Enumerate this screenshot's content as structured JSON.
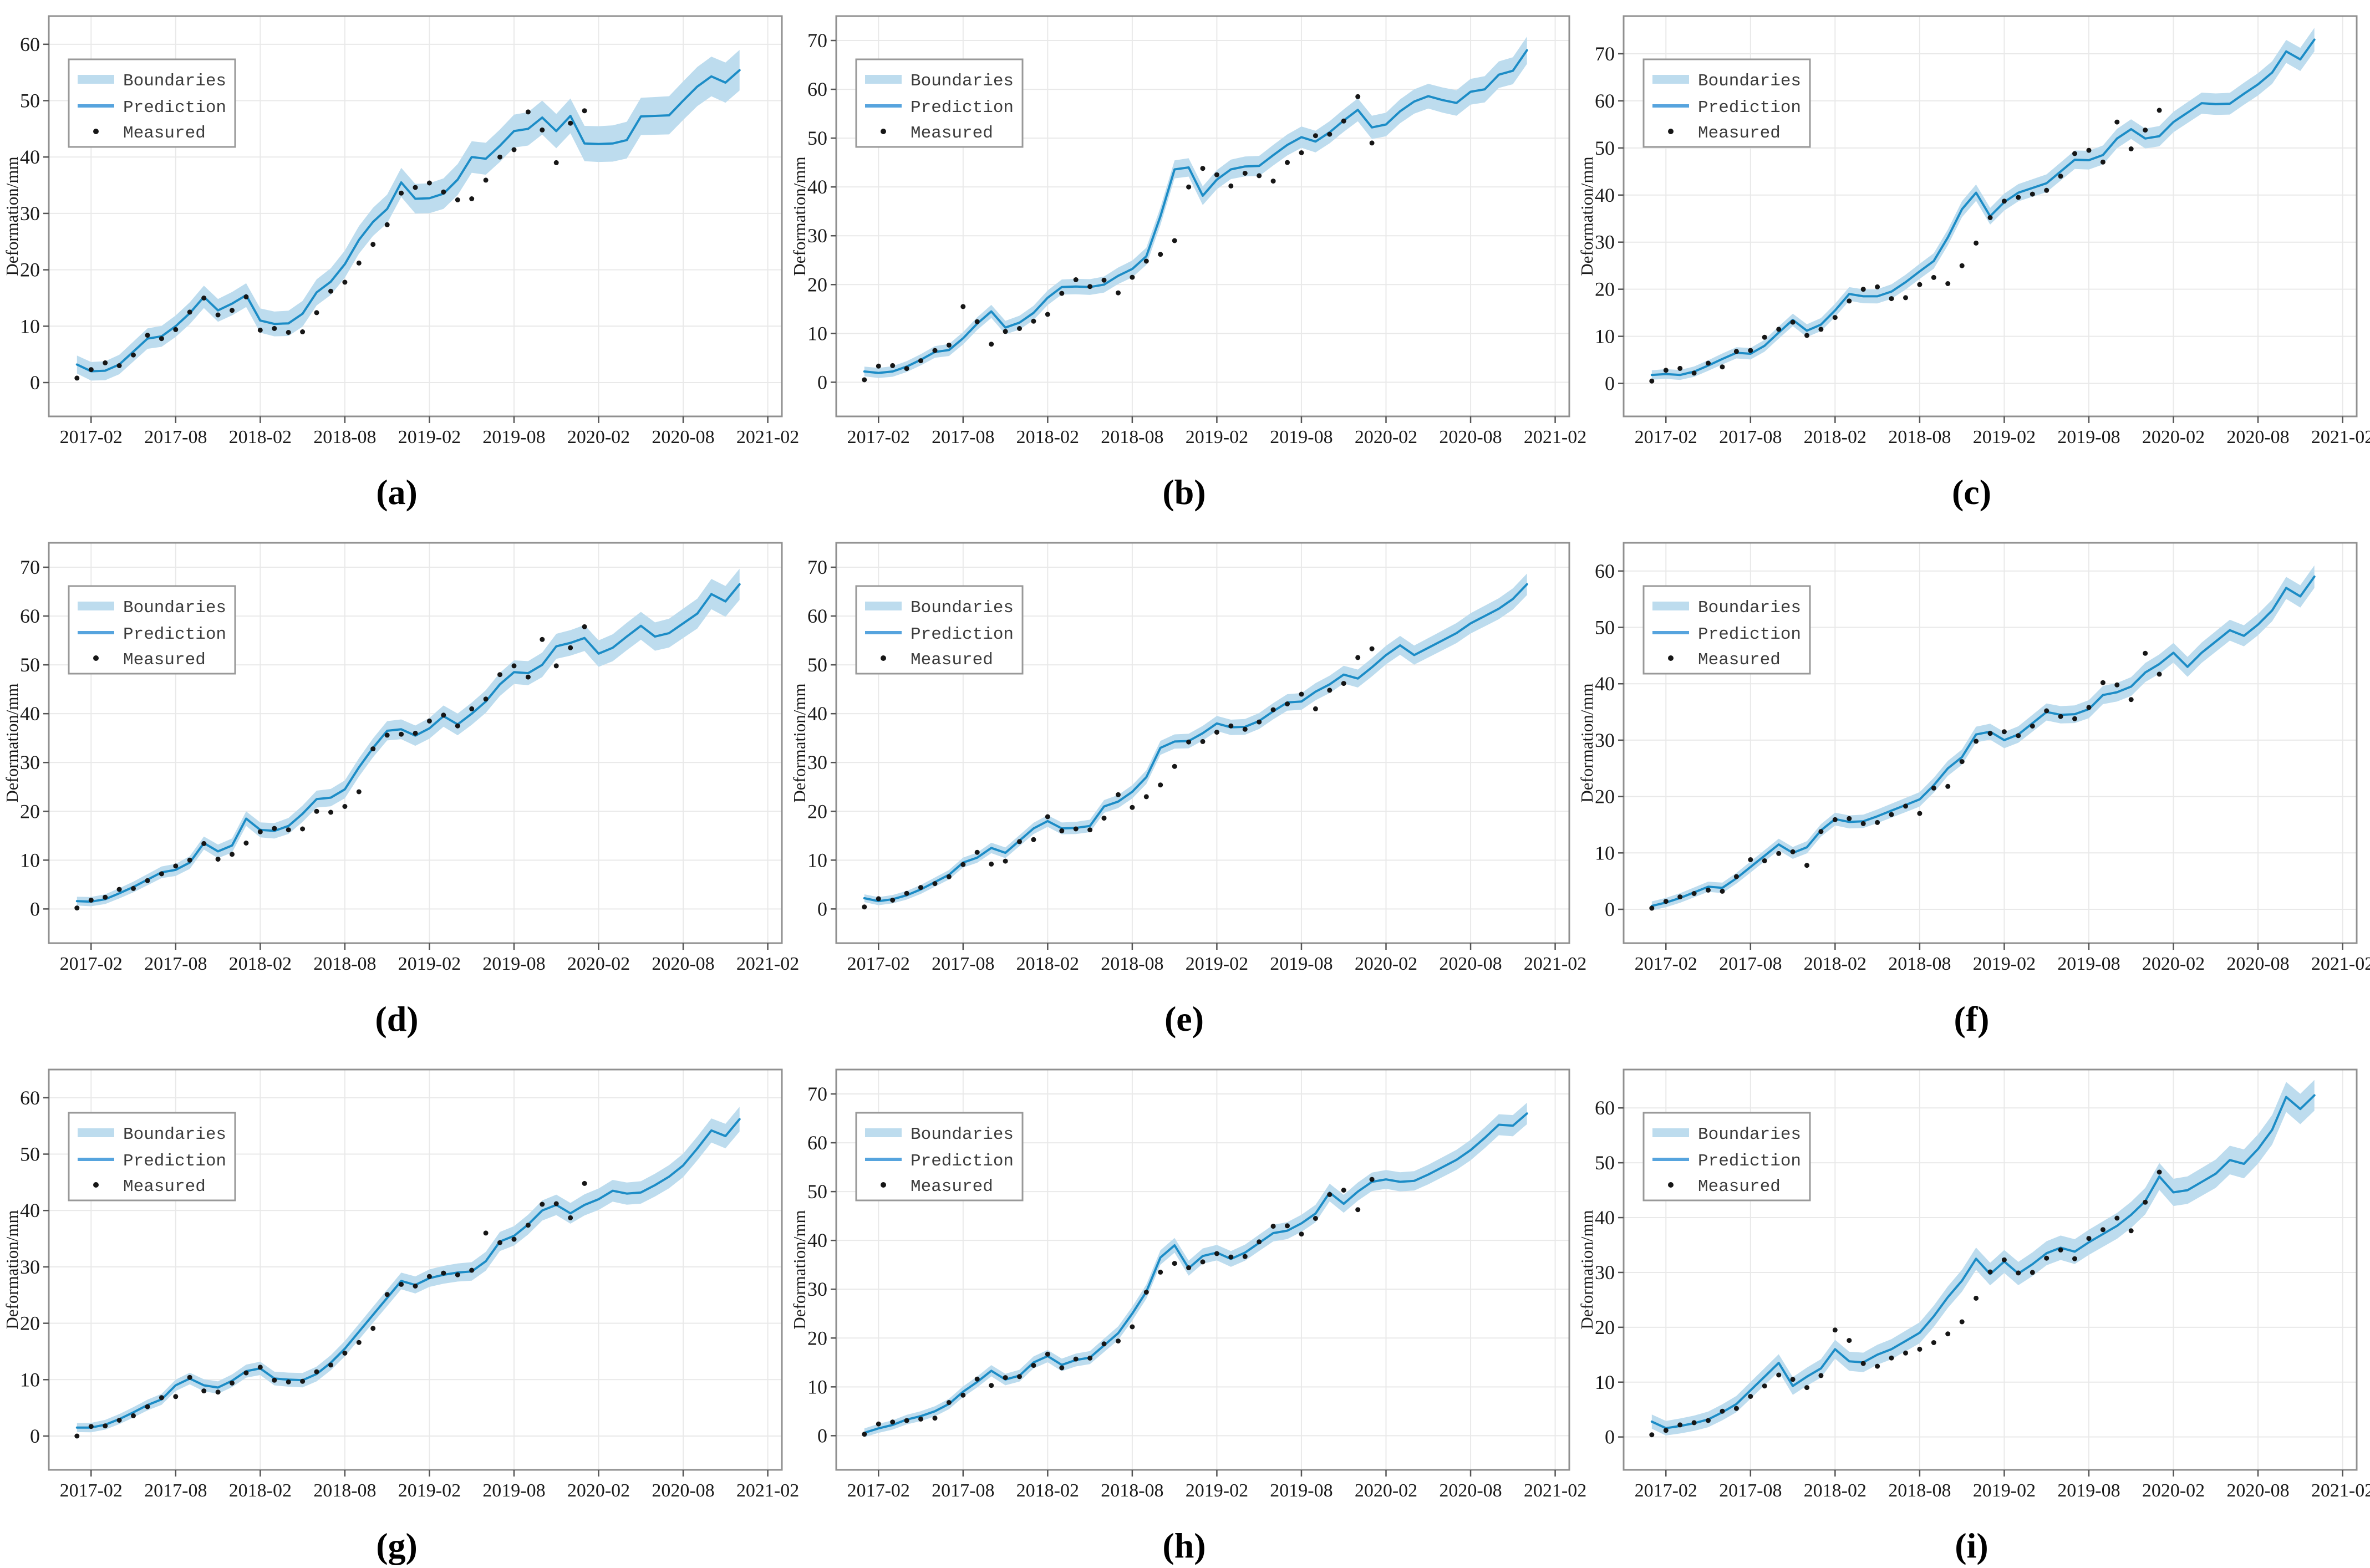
{
  "figure": {
    "ylabel": "Deformation/mm",
    "x_tick_labels": [
      "2017-02",
      "2017-08",
      "2018-02",
      "2018-08",
      "2019-02",
      "2019-08",
      "2020-02",
      "2020-08",
      "2021-02"
    ],
    "x_tick_months": [
      1,
      7,
      13,
      19,
      25,
      31,
      37,
      43,
      49
    ],
    "x_range_months": [
      -2,
      50
    ],
    "legend": {
      "boundaries": "Boundaries",
      "prediction": "Prediction",
      "measured": "Measured"
    },
    "colors": {
      "band": "#bddcee",
      "line": "#1c8cc6",
      "legend_line": "#56a4de",
      "measured": "#161616",
      "grid": "#e9e9e9",
      "frame": "#909090",
      "tick_text": "#1a1a1a",
      "legend_border": "#999999",
      "legend_text": "#3c3c3c"
    }
  },
  "chart_data": [
    {
      "label": "(a)",
      "type": "line",
      "ylabel": "Deformation/mm",
      "yticks": [
        0,
        10,
        20,
        30,
        40,
        50,
        60
      ],
      "ylim": [
        -6,
        65
      ],
      "band": {
        "start": 1.6,
        "end": 3.6
      },
      "pred": [
        3.2,
        2.0,
        2.1,
        3.2,
        5.5,
        7.8,
        8.2,
        10.0,
        12.3,
        15.2,
        12.8,
        14.0,
        15.5,
        11.0,
        10.4,
        10.5,
        12.2,
        16.0,
        17.9,
        21.0,
        25.3,
        28.5,
        30.8,
        35.5,
        32.6,
        32.7,
        33.5,
        36.0,
        40.0,
        39.7,
        42.0,
        44.6,
        45.0,
        47.0,
        44.6,
        47.3,
        42.4,
        42.3,
        42.4,
        43.0,
        47.2,
        47.3,
        47.4,
        50.0,
        52.5,
        54.3,
        53.2,
        55.4
      ],
      "meas": [
        0.8,
        2.3,
        3.5,
        3.0,
        4.9,
        8.4,
        7.8,
        9.4,
        12.5,
        15.0,
        12.0,
        12.8,
        15.2,
        9.3,
        9.6,
        8.9,
        9.0,
        12.4,
        16.2,
        17.8,
        21.2,
        24.5,
        28.0,
        33.6,
        34.6,
        35.4,
        33.8,
        32.4,
        32.6,
        35.9,
        40.0,
        41.3,
        48.0,
        44.8,
        39.0,
        46.0,
        48.2
      ]
    },
    {
      "label": "(b)",
      "type": "line",
      "ylabel": "Deformation/mm",
      "yticks": [
        0,
        10,
        20,
        30,
        40,
        50,
        60,
        70
      ],
      "ylim": [
        -7,
        75
      ],
      "band": {
        "start": 1.0,
        "end": 2.8
      },
      "pred": [
        2.2,
        1.9,
        2.2,
        3.2,
        4.6,
        6.2,
        6.6,
        9.0,
        12.0,
        14.5,
        11.2,
        12.2,
        14.2,
        17.3,
        19.5,
        19.6,
        19.5,
        20.0,
        21.8,
        23.2,
        25.8,
        34.0,
        43.6,
        44.0,
        38.2,
        41.5,
        43.6,
        44.2,
        44.3,
        46.5,
        48.6,
        50.2,
        49.3,
        51.2,
        53.6,
        55.8,
        52.2,
        52.8,
        55.5,
        57.5,
        58.6,
        57.8,
        57.2,
        59.5,
        60.0,
        63.0,
        63.8,
        68.0
      ],
      "meas": [
        0.5,
        3.3,
        3.4,
        2.8,
        4.4,
        6.5,
        7.6,
        15.5,
        12.4,
        7.8,
        10.4,
        11.0,
        12.5,
        13.9,
        18.2,
        21.0,
        19.6,
        20.9,
        18.3,
        21.5,
        24.8,
        26.2,
        29.0,
        40.0,
        43.8,
        42.5,
        40.2,
        42.8,
        42.3,
        41.2,
        45.0,
        47.0,
        50.5,
        50.8,
        53.5,
        58.5,
        49.0
      ]
    },
    {
      "label": "(c)",
      "type": "line",
      "ylabel": "Deformation/mm",
      "yticks": [
        0,
        10,
        20,
        30,
        40,
        50,
        60,
        70
      ],
      "ylim": [
        -7,
        78
      ],
      "band": {
        "start": 1.0,
        "end": 2.5
      },
      "pred": [
        1.8,
        2.0,
        1.8,
        2.5,
        3.8,
        5.2,
        6.5,
        6.3,
        8.0,
        10.8,
        13.5,
        11.2,
        12.5,
        15.5,
        19.0,
        18.5,
        18.5,
        19.5,
        21.5,
        23.8,
        26.0,
        31.0,
        37.0,
        40.5,
        35.5,
        38.5,
        40.5,
        41.5,
        42.5,
        45.0,
        47.5,
        47.4,
        48.5,
        52.0,
        54.0,
        52.0,
        52.5,
        55.5,
        57.5,
        59.5,
        59.3,
        59.4,
        61.5,
        63.5,
        66.0,
        70.5,
        68.8,
        73.0
      ],
      "meas": [
        0.5,
        2.8,
        3.2,
        2.2,
        4.3,
        3.5,
        6.8,
        7.0,
        9.8,
        11.5,
        13.0,
        10.2,
        11.5,
        14.0,
        17.5,
        20.0,
        20.5,
        18.0,
        18.2,
        21.0,
        22.5,
        21.2,
        25.0,
        29.8,
        35.2,
        38.7,
        39.5,
        40.2,
        41.0,
        44.0,
        48.8,
        49.5,
        47.0,
        55.5,
        49.8,
        53.8,
        58.0
      ]
    },
    {
      "label": "(d)",
      "type": "line",
      "ylabel": "Deformation/mm",
      "yticks": [
        0,
        10,
        20,
        30,
        40,
        50,
        60,
        70
      ],
      "ylim": [
        -7,
        75
      ],
      "band": {
        "start": 0.9,
        "end": 3.2
      },
      "pred": [
        1.6,
        1.5,
        2.0,
        3.2,
        4.5,
        6.0,
        7.5,
        8.0,
        9.5,
        13.5,
        11.8,
        13.0,
        18.5,
        16.2,
        16.0,
        17.0,
        19.5,
        22.5,
        22.8,
        24.5,
        29.0,
        33.0,
        36.5,
        36.8,
        35.5,
        37.0,
        39.5,
        37.8,
        40.0,
        42.5,
        46.0,
        48.5,
        48.3,
        50.0,
        53.8,
        54.5,
        55.5,
        52.3,
        53.5,
        55.8,
        58.0,
        55.8,
        56.5,
        58.5,
        60.5,
        64.5,
        63.0,
        66.5
      ],
      "meas": [
        0.2,
        1.8,
        2.4,
        4.0,
        4.2,
        5.8,
        7.2,
        8.8,
        10.0,
        13.4,
        10.2,
        11.2,
        13.5,
        15.8,
        16.5,
        16.2,
        16.4,
        20.0,
        19.8,
        21.0,
        24.0,
        32.8,
        35.6,
        35.8,
        36.0,
        38.5,
        39.7,
        37.5,
        41.0,
        43.0,
        48.0,
        49.8,
        47.5,
        55.2,
        49.8,
        53.5,
        57.8
      ]
    },
    {
      "label": "(e)",
      "type": "line",
      "ylabel": "Deformation/mm",
      "yticks": [
        0,
        10,
        20,
        30,
        40,
        50,
        60,
        70
      ],
      "ylim": [
        -7,
        75
      ],
      "band": {
        "start": 0.8,
        "end": 2.2
      },
      "pred": [
        2.2,
        1.6,
        2.0,
        2.8,
        4.0,
        5.5,
        7.0,
        9.5,
        10.5,
        12.5,
        11.5,
        14.0,
        16.5,
        18.0,
        16.5,
        16.6,
        17.0,
        21.0,
        22.0,
        24.0,
        27.0,
        33.0,
        34.3,
        34.4,
        36.0,
        38.0,
        37.2,
        37.3,
        38.5,
        40.5,
        42.3,
        42.5,
        44.5,
        46.0,
        48.0,
        47.2,
        49.5,
        52.0,
        54.0,
        52.0,
        53.5,
        55.0,
        56.5,
        58.5,
        60.0,
        61.5,
        63.5,
        66.5
      ],
      "meas": [
        0.4,
        2.1,
        1.8,
        3.2,
        4.4,
        5.2,
        6.6,
        9.1,
        11.6,
        9.2,
        9.8,
        13.8,
        14.2,
        18.9,
        16.0,
        16.4,
        16.2,
        18.6,
        23.4,
        20.8,
        23.0,
        25.4,
        29.2,
        34.2,
        34.3,
        36.2,
        37.5,
        36.8,
        38.3,
        40.8,
        42.0,
        44.0,
        41.0,
        44.8,
        46.2,
        51.5,
        53.3
      ]
    },
    {
      "label": "(f)",
      "type": "line",
      "ylabel": "Deformation/mm",
      "yticks": [
        0,
        10,
        20,
        30,
        40,
        50,
        60
      ],
      "ylim": [
        -6,
        65
      ],
      "band": {
        "start": 0.8,
        "end": 2.0
      },
      "pred": [
        0.6,
        1.2,
        2.0,
        3.0,
        4.0,
        3.8,
        5.5,
        7.5,
        9.5,
        11.5,
        10.0,
        11.0,
        14.0,
        16.0,
        15.5,
        15.6,
        16.5,
        17.5,
        18.5,
        19.5,
        22.0,
        25.0,
        27.0,
        31.0,
        31.5,
        30.0,
        31.0,
        33.0,
        35.0,
        34.5,
        34.6,
        35.5,
        38.0,
        38.5,
        39.5,
        42.0,
        43.5,
        45.5,
        43.0,
        45.5,
        47.5,
        49.5,
        48.5,
        50.5,
        53.0,
        57.0,
        55.5,
        59.0
      ],
      "meas": [
        0.2,
        1.4,
        2.2,
        2.8,
        3.4,
        3.2,
        5.8,
        8.8,
        8.6,
        9.9,
        10.2,
        7.8,
        13.8,
        15.9,
        16.1,
        15.2,
        15.4,
        16.8,
        18.3,
        17.0,
        21.5,
        21.8,
        26.2,
        29.8,
        31.2,
        31.5,
        30.8,
        32.5,
        35.2,
        34.2,
        33.8,
        35.8,
        40.2,
        39.8,
        37.2,
        45.4,
        41.7
      ]
    },
    {
      "label": "(g)",
      "type": "line",
      "ylabel": "Deformation/mm",
      "yticks": [
        0,
        10,
        20,
        30,
        40,
        50,
        60
      ],
      "ylim": [
        -6,
        65
      ],
      "band": {
        "start": 0.8,
        "end": 2.2
      },
      "pred": [
        1.5,
        1.5,
        2.0,
        3.0,
        4.2,
        5.5,
        6.5,
        9.0,
        10.2,
        9.0,
        8.6,
        9.8,
        11.5,
        12.0,
        10.2,
        10.0,
        9.9,
        11.0,
        13.0,
        15.5,
        18.5,
        21.5,
        24.5,
        27.5,
        26.8,
        28.0,
        28.6,
        29.0,
        29.2,
        31.0,
        34.5,
        35.5,
        37.5,
        40.0,
        41.0,
        39.5,
        41.0,
        42.0,
        43.5,
        43.0,
        43.2,
        44.5,
        46.0,
        48.0,
        51.0,
        54.2,
        53.2,
        56.2
      ],
      "meas": [
        0.0,
        1.7,
        1.8,
        2.8,
        3.6,
        5.2,
        6.8,
        7.0,
        10.4,
        8.0,
        7.8,
        9.4,
        11.2,
        12.2,
        9.9,
        9.6,
        9.7,
        11.4,
        12.6,
        14.7,
        16.6,
        19.1,
        25.1,
        26.9,
        26.6,
        28.3,
        28.9,
        28.6,
        29.4,
        36.0,
        34.3,
        34.9,
        37.4,
        41.1,
        41.2,
        38.7,
        44.8
      ]
    },
    {
      "label": "(h)",
      "type": "line",
      "ylabel": "Deformation/mm",
      "yticks": [
        0,
        10,
        20,
        30,
        40,
        50,
        60,
        70
      ],
      "ylim": [
        -7,
        75
      ],
      "band": {
        "start": 0.9,
        "end": 2.2
      },
      "pred": [
        0.6,
        1.5,
        2.2,
        3.3,
        4.0,
        5.0,
        6.5,
        9.0,
        11.0,
        13.3,
        11.5,
        12.3,
        15.0,
        16.3,
        14.5,
        15.5,
        16.0,
        18.5,
        21.0,
        25.0,
        29.5,
        36.5,
        39.0,
        34.3,
        36.8,
        37.5,
        36.2,
        37.5,
        39.5,
        41.5,
        42.0,
        43.5,
        45.5,
        49.8,
        47.5,
        50.0,
        52.0,
        52.5,
        52.0,
        52.2,
        53.5,
        55.0,
        56.5,
        58.5,
        61.0,
        63.7,
        63.5,
        66.0
      ],
      "meas": [
        0.3,
        2.4,
        2.8,
        3.1,
        3.4,
        3.6,
        6.8,
        8.3,
        11.6,
        10.3,
        11.9,
        12.1,
        14.4,
        16.7,
        13.9,
        15.7,
        15.9,
        18.8,
        19.4,
        22.3,
        29.4,
        33.5,
        35.3,
        34.4,
        35.6,
        37.3,
        36.6,
        36.7,
        39.7,
        42.9,
        43.0,
        41.3,
        44.5,
        49.4,
        50.3,
        46.3,
        52.5
      ]
    },
    {
      "label": "(i)",
      "type": "line",
      "ylabel": "Deformation/mm",
      "yticks": [
        0,
        10,
        20,
        30,
        40,
        50,
        60
      ],
      "ylim": [
        -6,
        67
      ],
      "band": {
        "start": 1.3,
        "end": 2.8
      },
      "pred": [
        2.8,
        1.6,
        2.0,
        2.5,
        3.2,
        4.5,
        6.0,
        8.5,
        11.0,
        13.5,
        9.3,
        11.0,
        12.5,
        16.0,
        13.8,
        13.6,
        15.0,
        16.0,
        17.5,
        19.0,
        22.0,
        25.5,
        28.5,
        32.5,
        29.7,
        32.0,
        29.8,
        31.5,
        33.5,
        34.5,
        33.8,
        35.5,
        37.0,
        38.5,
        40.5,
        43.0,
        47.5,
        44.6,
        45.0,
        46.5,
        48.0,
        50.5,
        49.8,
        52.5,
        56.0,
        62.0,
        59.8,
        62.3
      ],
      "meas": [
        0.4,
        1.2,
        2.2,
        2.6,
        3.0,
        4.7,
        5.2,
        7.4,
        9.3,
        11.3,
        10.5,
        9.0,
        11.2,
        19.5,
        17.6,
        13.4,
        12.9,
        14.4,
        15.3,
        16.0,
        17.2,
        18.8,
        21.0,
        25.3,
        30.1,
        32.3,
        29.9,
        30.0,
        32.6,
        34.1,
        32.5,
        36.2,
        37.8,
        39.9,
        37.6,
        42.8,
        48.3
      ]
    }
  ]
}
